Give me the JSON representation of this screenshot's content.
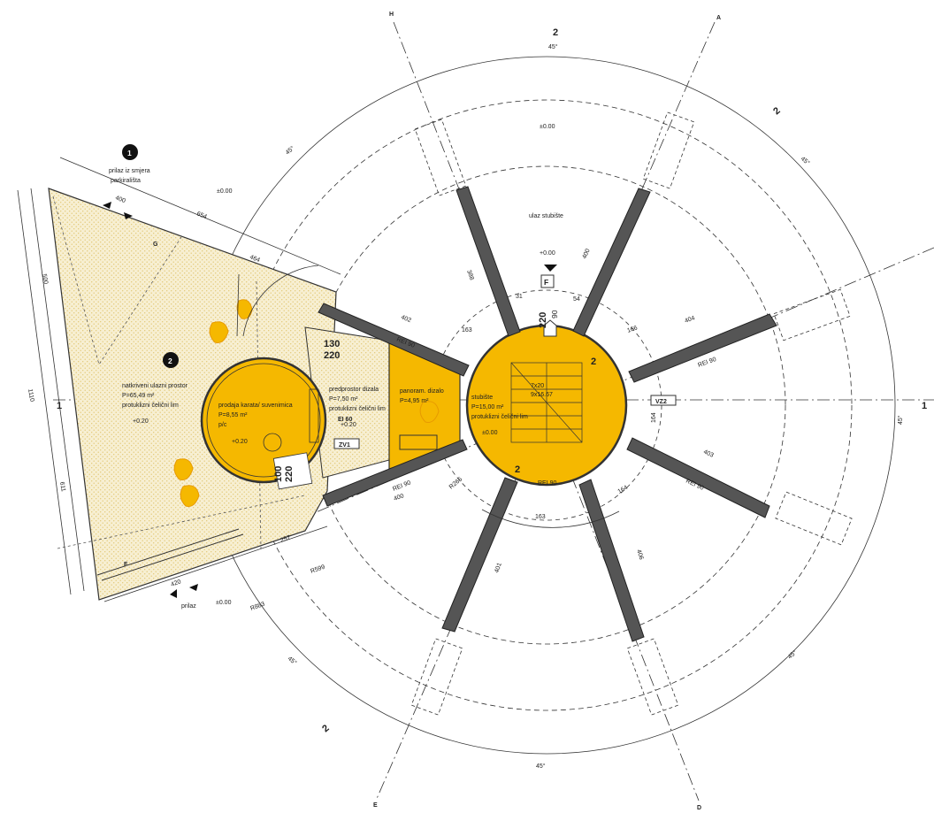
{
  "axes": {
    "A": "A",
    "D": "D",
    "E": "E",
    "H": "H",
    "left_axis": "1",
    "right_axis": "1",
    "section_top": "2",
    "section_topright": "2",
    "section_bottom": "2"
  },
  "markers": {
    "m1": "1",
    "m1_text_line1": "prilaz iz smjera",
    "m1_text_line2": "parkirališta",
    "m2": "2",
    "bottom_access": "prilaz",
    "elevation_top": "±0.00",
    "elevation_left_top": "±0.00",
    "elevation_bottom": "±0.00"
  },
  "rooms": {
    "entrance_name": "natkriveni ulazni prostor",
    "entrance_area": "P=65,49   m²",
    "entrance_note": "protuklizni čelični lim",
    "entrance_level": "+0.20",
    "shop_name": "prodaja karata/ suvenimica",
    "shop_area": "P=8,55   m²",
    "shop_floor": "p/c",
    "shop_level": "+0.20",
    "lobby_name": "predprostor dizala",
    "lobby_area": "P=7,50    m²",
    "lobby_note": "protuklizni čelični lim",
    "lobby_level": "+0.20",
    "lift_name": "panoram. dizalo",
    "lift_area": "P=4,95    m²",
    "stair_name": "stubište",
    "stair_area": "P=15,00   m²",
    "stair_note": "protuklizni čelični lim",
    "stair_level": "±0.00",
    "stair_steps": "7x20",
    "stair_steps2": "9x16.67",
    "stair_entry": "ulaz stubište",
    "stair_entry_level": "+0.00",
    "stair_arrow_label": "2"
  },
  "labels": {
    "door_f": "F",
    "door_f_w": "220",
    "door_f_h": "90",
    "door_top_w": "130",
    "door_top_h": "220",
    "door_bottom_w": "100",
    "door_bottom_h": "220",
    "ei60": "EI 60",
    "zv1": "ZV1",
    "vz2": "VZ2",
    "rei": "REI 90",
    "zone_g": "G",
    "zone_f": "F"
  },
  "dims": {
    "d400_top": "400",
    "d654": "654",
    "d464": "464",
    "d402": "402",
    "d163_a": "163",
    "d31": "31",
    "d54": "54",
    "d388": "388",
    "d400_b": "400",
    "d404": "404",
    "d166": "166",
    "d164_a": "164",
    "d403": "403",
    "d164_b": "164",
    "d406": "406",
    "d163_b": "163",
    "d401": "401",
    "d400_c": "400",
    "d257": "257",
    "d420": "420",
    "d500": "500",
    "d1110": "1110",
    "d611": "611",
    "r599": "R599",
    "r883": "R883",
    "r265": "R265",
    "ang45_1": "45°",
    "ang45_2": "45°",
    "ang45_3": "45°",
    "ang45_4": "45°",
    "ang45_5": "45°",
    "ang45_6": "45°",
    "ang45_7": "45°"
  }
}
